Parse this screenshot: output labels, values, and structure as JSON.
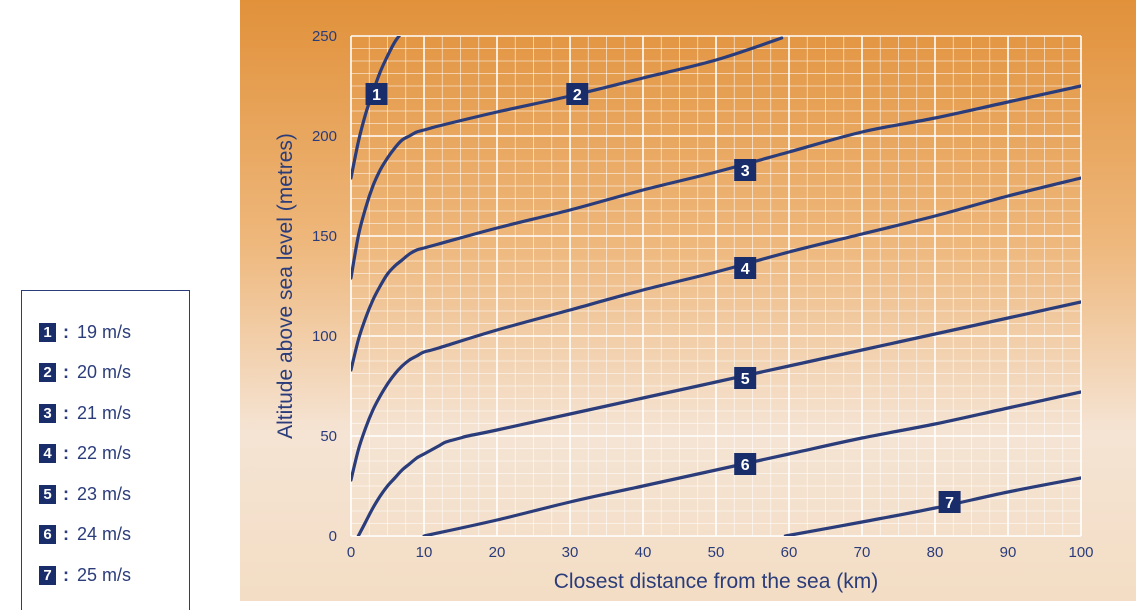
{
  "legend": {
    "items": [
      {
        "id": "1",
        "sep": ":",
        "label": "19 m/s"
      },
      {
        "id": "2",
        "sep": ":",
        "label": "20 m/s"
      },
      {
        "id": "3",
        "sep": ":",
        "label": "21 m/s"
      },
      {
        "id": "4",
        "sep": ":",
        "label": "22 m/s"
      },
      {
        "id": "5",
        "sep": ":",
        "label": "23 m/s"
      },
      {
        "id": "6",
        "sep": ":",
        "label": "24 m/s"
      },
      {
        "id": "7",
        "sep": ":",
        "label": "25 m/s"
      }
    ]
  },
  "colors": {
    "line": "#2b3c7a",
    "badge": "#1a2d6b",
    "grid": "#ffffff",
    "axis_text": "#2b3c7a",
    "background_top": "#e1913a",
    "background_bottom": "#f3ddc4"
  },
  "chart_data": {
    "type": "line",
    "title": "",
    "xlabel": "Closest distance from the sea (km)",
    "ylabel": "Altitude above sea level (metres)",
    "xlim": [
      0,
      100
    ],
    "ylim": [
      0,
      250
    ],
    "x_ticks": [
      0,
      10,
      20,
      30,
      40,
      50,
      60,
      70,
      80,
      90,
      100
    ],
    "y_ticks": [
      0,
      50,
      100,
      150,
      200,
      250
    ],
    "grid": true,
    "minor_grid": {
      "x_step": 2.5,
      "y_step": 6.25
    },
    "series": [
      {
        "name": "1",
        "label_at": [
          3.5,
          221
        ],
        "points": [
          [
            0,
            179
          ],
          [
            1,
            197
          ],
          [
            2,
            211
          ],
          [
            3,
            222
          ],
          [
            4,
            232
          ],
          [
            5,
            240
          ],
          [
            6,
            247
          ],
          [
            7,
            252
          ]
        ]
      },
      {
        "name": "2",
        "label_at": [
          31,
          221
        ],
        "points": [
          [
            0,
            129
          ],
          [
            1,
            150
          ],
          [
            2,
            164
          ],
          [
            3,
            175
          ],
          [
            4,
            183
          ],
          [
            5,
            189
          ],
          [
            6,
            194
          ],
          [
            7,
            198
          ],
          [
            8,
            200
          ],
          [
            9,
            202
          ],
          [
            10,
            203
          ],
          [
            11,
            204
          ],
          [
            12,
            205
          ],
          [
            20,
            212
          ],
          [
            30,
            220
          ],
          [
            40,
            229
          ],
          [
            50,
            238
          ],
          [
            59,
            249
          ]
        ]
      },
      {
        "name": "3",
        "label_at": [
          54,
          183
        ],
        "points": [
          [
            0,
            83
          ],
          [
            1,
            98
          ],
          [
            2,
            109
          ],
          [
            3,
            118
          ],
          [
            4,
            125
          ],
          [
            5,
            131
          ],
          [
            6,
            135
          ],
          [
            7,
            138
          ],
          [
            8,
            141
          ],
          [
            9,
            143
          ],
          [
            10,
            144
          ],
          [
            12,
            146
          ],
          [
            20,
            154
          ],
          [
            30,
            163
          ],
          [
            40,
            173
          ],
          [
            50,
            182
          ],
          [
            60,
            192
          ],
          [
            70,
            202
          ],
          [
            80,
            209
          ],
          [
            90,
            217
          ],
          [
            100,
            225
          ]
        ]
      },
      {
        "name": "4",
        "label_at": [
          54,
          134
        ],
        "points": [
          [
            0,
            28
          ],
          [
            1,
            43
          ],
          [
            2,
            54
          ],
          [
            3,
            63
          ],
          [
            4,
            70
          ],
          [
            5,
            76
          ],
          [
            6,
            81
          ],
          [
            7,
            85
          ],
          [
            8,
            88
          ],
          [
            9,
            90
          ],
          [
            10,
            92
          ],
          [
            12,
            94
          ],
          [
            20,
            103
          ],
          [
            30,
            113
          ],
          [
            40,
            123
          ],
          [
            50,
            132
          ],
          [
            60,
            142
          ],
          [
            70,
            151
          ],
          [
            80,
            160
          ],
          [
            90,
            170
          ],
          [
            100,
            179
          ]
        ]
      },
      {
        "name": "5",
        "label_at": [
          54,
          79
        ],
        "points": [
          [
            1,
            0
          ],
          [
            2,
            7
          ],
          [
            3,
            14
          ],
          [
            4,
            20
          ],
          [
            5,
            25
          ],
          [
            6,
            29
          ],
          [
            7,
            33
          ],
          [
            8,
            36
          ],
          [
            9,
            39
          ],
          [
            10,
            41
          ],
          [
            11,
            43
          ],
          [
            12,
            45
          ],
          [
            13,
            47
          ],
          [
            15,
            49
          ],
          [
            16,
            50
          ],
          [
            20,
            53
          ],
          [
            30,
            61
          ],
          [
            40,
            69
          ],
          [
            50,
            77
          ],
          [
            60,
            85
          ],
          [
            70,
            93
          ],
          [
            80,
            101
          ],
          [
            90,
            109
          ],
          [
            100,
            117
          ]
        ]
      },
      {
        "name": "6",
        "label_at": [
          54,
          36
        ],
        "points": [
          [
            10,
            0
          ],
          [
            20,
            8
          ],
          [
            30,
            17
          ],
          [
            40,
            25
          ],
          [
            50,
            33
          ],
          [
            60,
            41
          ],
          [
            70,
            49
          ],
          [
            80,
            56
          ],
          [
            90,
            64
          ],
          [
            100,
            72
          ]
        ]
      },
      {
        "name": "7",
        "label_at": [
          82,
          17
        ],
        "points": [
          [
            59.5,
            0
          ],
          [
            70,
            7
          ],
          [
            80,
            14
          ],
          [
            90,
            22
          ],
          [
            100,
            29
          ]
        ]
      }
    ]
  }
}
